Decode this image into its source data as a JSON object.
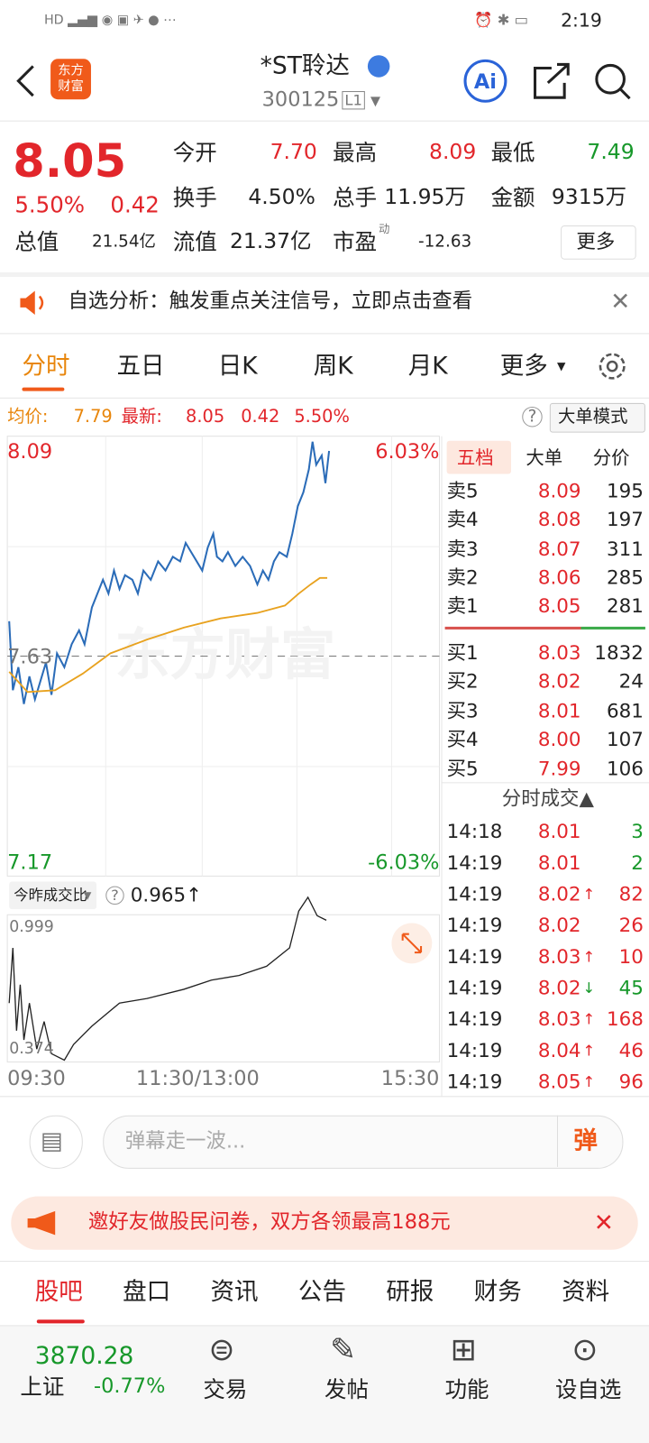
{
  "status_bar": {
    "time": "2:19"
  },
  "header": {
    "logo": "东方财富",
    "name": "*ST聆达",
    "code": "300125",
    "level": "L1"
  },
  "quote": {
    "price": "8.05",
    "change_pct": "5.50%",
    "change": "0.42",
    "fields": [
      {
        "label": "今开",
        "value": "7.70"
      },
      {
        "label": "最高",
        "value": "8.09"
      },
      {
        "label": "最低",
        "value": "7.49"
      },
      {
        "label": "换手",
        "value": "4.50%"
      },
      {
        "label": "总手",
        "value": "11.95万"
      },
      {
        "label": "金额",
        "value": "9315万"
      },
      {
        "label": "总值",
        "value": "21.54亿"
      },
      {
        "label": "流值",
        "value": "21.37亿"
      },
      {
        "label": "市盈",
        "sup": "动",
        "value": "-12.63"
      }
    ],
    "more": "更多"
  },
  "notice": "自选分析：触发重点关注信号，立即点击查看",
  "tabs": [
    "分时",
    "五日",
    "日K",
    "周K",
    "月K",
    "更多"
  ],
  "info": {
    "avg_label": "均价:",
    "avg": "7.79",
    "latest_label": "最新:",
    "latest": "8.05",
    "change": "0.42",
    "pct": "5.50%",
    "mode": "大单模式"
  },
  "chart": {
    "high": "8.09",
    "high_pct": "6.03%",
    "low": "7.17",
    "low_pct": "-6.03%",
    "prev": "7.63",
    "watermark": "东方财富",
    "ratio_label": "今昨成交比",
    "ratio": "0.965↑",
    "ratio_high": "0.999",
    "ratio_low": "0.374",
    "times": [
      "09:30",
      "11:30/13:00",
      "15:30"
    ]
  },
  "order_book": {
    "tabs": [
      "五档",
      "大单",
      "分价"
    ],
    "sells": [
      {
        "label": "卖5",
        "price": "8.09",
        "volume": "195"
      },
      {
        "label": "卖4",
        "price": "8.08",
        "volume": "197"
      },
      {
        "label": "卖3",
        "price": "8.07",
        "volume": "311"
      },
      {
        "label": "卖2",
        "price": "8.06",
        "volume": "285"
      },
      {
        "label": "卖1",
        "price": "8.05",
        "volume": "281"
      }
    ],
    "buys": [
      {
        "label": "买1",
        "price": "8.03",
        "volume": "1832"
      },
      {
        "label": "买2",
        "price": "8.02",
        "volume": "24"
      },
      {
        "label": "买3",
        "price": "8.01",
        "volume": "681"
      },
      {
        "label": "买4",
        "price": "8.00",
        "volume": "107"
      },
      {
        "label": "买5",
        "price": "7.99",
        "volume": "106"
      }
    ]
  },
  "trades": {
    "title": "分时成交▲",
    "rows": [
      {
        "time": "14:18",
        "price": "8.01",
        "arrow": "",
        "volume": "3",
        "side": "sell"
      },
      {
        "time": "14:19",
        "price": "8.01",
        "arrow": "",
        "volume": "2",
        "side": "sell"
      },
      {
        "time": "14:19",
        "price": "8.02",
        "arrow": "↑",
        "volume": "82",
        "side": "buy"
      },
      {
        "time": "14:19",
        "price": "8.02",
        "arrow": "",
        "volume": "26",
        "side": "buy"
      },
      {
        "time": "14:19",
        "price": "8.03",
        "arrow": "↑",
        "volume": "10",
        "side": "buy"
      },
      {
        "time": "14:19",
        "price": "8.02",
        "arrow": "↓",
        "volume": "45",
        "side": "sell"
      },
      {
        "time": "14:19",
        "price": "8.03",
        "arrow": "↑",
        "volume": "168",
        "side": "buy"
      },
      {
        "time": "14:19",
        "price": "8.04",
        "arrow": "↑",
        "volume": "46",
        "side": "buy"
      },
      {
        "time": "14:19",
        "price": "8.05",
        "arrow": "↑",
        "volume": "96",
        "side": "buy"
      }
    ]
  },
  "comment": {
    "placeholder": "弹幕走一波...",
    "button": "弹"
  },
  "promo": "邀好友做股民问卷，双方各领最高188元",
  "bottom_tabs": [
    "股吧",
    "盘口",
    "资讯",
    "公告",
    "研报",
    "财务",
    "资料"
  ],
  "nav": {
    "index_value": "3870.28",
    "index_name": "上证",
    "index_change": "-0.77%",
    "items": [
      "交易",
      "发帖",
      "功能",
      "设自选"
    ]
  }
}
